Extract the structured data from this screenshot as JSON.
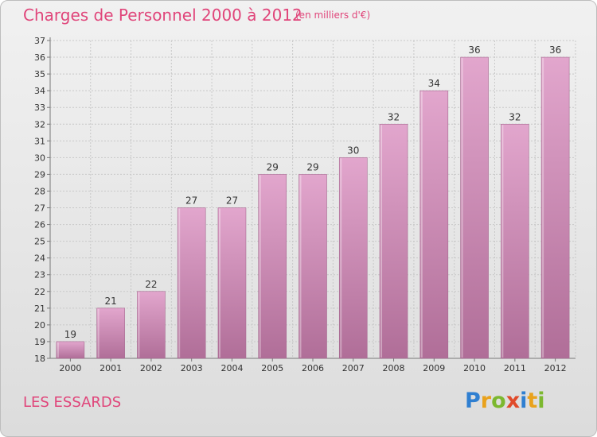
{
  "header": {
    "title": "Charges de Personnel 2000 à 2012",
    "subtitle": "(en milliers d'€)"
  },
  "footer": {
    "commune": "LES ESSARDS",
    "logo_letters": [
      "P",
      "r",
      "o",
      "x",
      "i",
      "t",
      "i"
    ],
    "logo_colors": [
      "#2f7fd1",
      "#e9a21c",
      "#7cb82f",
      "#e04a2a",
      "#2f7fd1",
      "#e9a21c",
      "#7cb82f"
    ]
  },
  "colors": {
    "bar_top": "#e2a6cd",
    "bar_bottom": "#b06e98",
    "grid": "#c8c8c8",
    "accent": "#e0457a"
  },
  "chart_data": {
    "type": "bar",
    "title": "Charges de Personnel 2000 à 2012",
    "subtitle": "(en milliers d'€)",
    "categories": [
      "2000",
      "2001",
      "2002",
      "2003",
      "2004",
      "2005",
      "2006",
      "2007",
      "2008",
      "2009",
      "2010",
      "2011",
      "2012"
    ],
    "values": [
      19,
      21,
      22,
      27,
      27,
      29,
      29,
      30,
      32,
      34,
      36,
      32,
      36
    ],
    "ylim": [
      18,
      37
    ],
    "yticks": [
      18,
      19,
      20,
      21,
      22,
      23,
      24,
      25,
      26,
      27,
      28,
      29,
      30,
      31,
      32,
      33,
      34,
      35,
      36,
      37
    ],
    "grid": true,
    "legend": "none"
  }
}
